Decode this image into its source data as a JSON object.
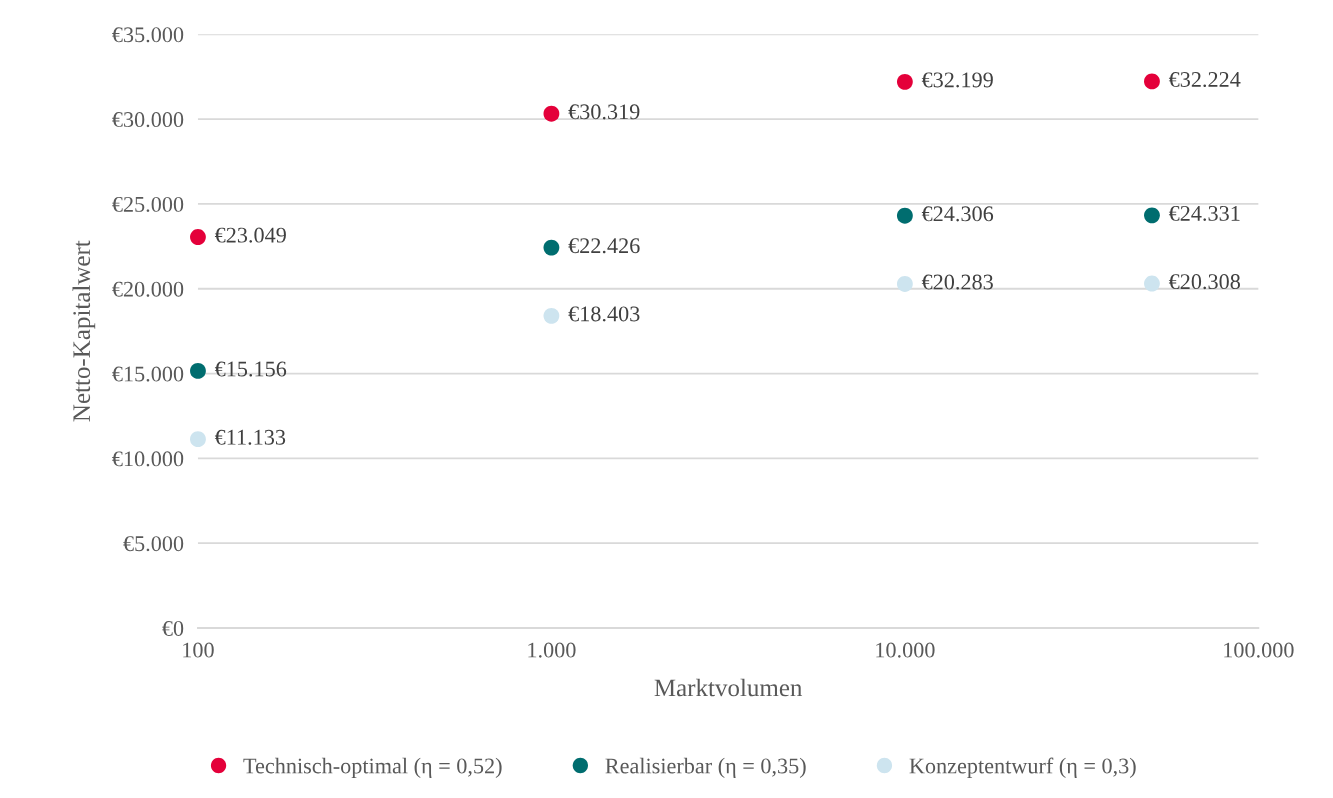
{
  "chart_data": {
    "type": "scatter",
    "xlabel": "Marktvolumen",
    "ylabel": "Netto-Kapitalwert",
    "x": [
      100,
      1000,
      10000,
      50000
    ],
    "series": [
      {
        "name": "Technisch-optimal (η = 0,52)",
        "color": "#e4003a",
        "values": [
          23049,
          30319,
          32199,
          32224
        ],
        "value_labels": [
          "€23.049",
          "€30.319",
          "€32.199",
          "€32.224"
        ]
      },
      {
        "name": "Realisierbar (η = 0,35)",
        "color": "#006d6f",
        "values": [
          15156,
          22426,
          24306,
          24331
        ],
        "value_labels": [
          "€15.156",
          "€22.426",
          "€24.306",
          "€24.331"
        ]
      },
      {
        "name": "Konzeptentwurf (η = 0,3)",
        "color": "#cde4ef",
        "values": [
          11133,
          18403,
          20283,
          20308
        ],
        "value_labels": [
          "€11.133",
          "€18.403",
          "€20.283",
          "€20.308"
        ]
      }
    ],
    "log": "x",
    "xlim": [
      100,
      100000
    ],
    "xticks": [
      100,
      {
        "value": 1000,
        "label": "1.000"
      },
      {
        "value": 10000,
        "label": "10.000"
      },
      {
        "value": 100000,
        "label": "100.000"
      }
    ],
    "ylim": [
      0,
      35000
    ],
    "yticks": [
      {
        "value": 0,
        "label": "€0"
      },
      {
        "value": 5000,
        "label": "€5.000"
      },
      {
        "value": 10000,
        "label": "€10.000"
      },
      {
        "value": 15000,
        "label": "€15.000"
      },
      {
        "value": 20000,
        "label": "€20.000"
      },
      {
        "value": 25000,
        "label": "€25.000"
      },
      {
        "value": 30000,
        "label": "€30.000"
      },
      {
        "value": 35000,
        "label": "€35.000"
      }
    ],
    "grid": "y",
    "legend": "bottom",
    "marker": "circle"
  }
}
